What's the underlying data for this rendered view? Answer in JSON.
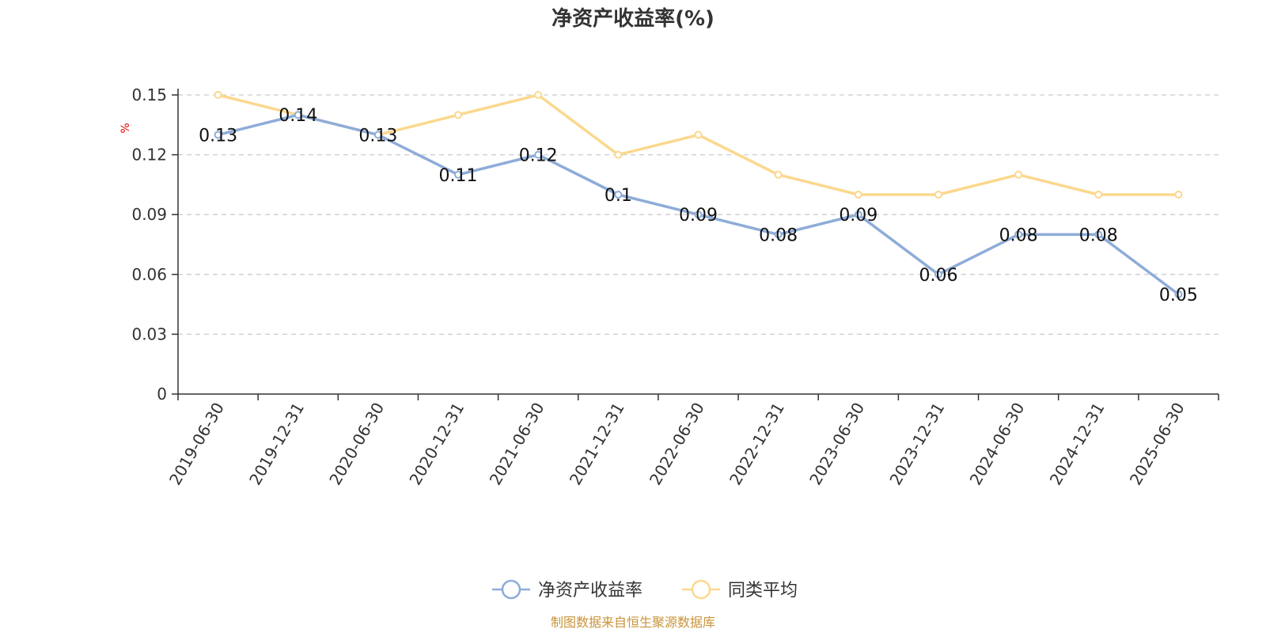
{
  "chart_data": {
    "type": "line",
    "title": "净资产收益率(%)",
    "ylabel": "%",
    "ylim": [
      0,
      0.15
    ],
    "yticks": [
      "0",
      "0.03",
      "0.06",
      "0.09",
      "0.12",
      "0.15"
    ],
    "categories": [
      "2019-06-30",
      "2019-12-31",
      "2020-06-30",
      "2020-12-31",
      "2021-06-30",
      "2021-12-31",
      "2022-06-30",
      "2022-12-31",
      "2023-06-30",
      "2023-12-31",
      "2024-06-30",
      "2024-12-31",
      "2025-06-30"
    ],
    "series": [
      {
        "name": "净资产收益率",
        "color": "#8eacd8",
        "values": [
          0.13,
          0.14,
          0.13,
          0.11,
          0.12,
          0.1,
          0.09,
          0.08,
          0.09,
          0.06,
          0.08,
          0.08,
          0.05
        ],
        "labels": [
          "0.13",
          "0.14",
          "0.13",
          "0.11",
          "0.12",
          "0.1",
          "0.09",
          "0.08",
          "0.09",
          "0.06",
          "0.08",
          "0.08",
          "0.05"
        ]
      },
      {
        "name": "同类平均",
        "color": "#fbd88e",
        "values": [
          0.15,
          0.14,
          0.13,
          0.14,
          0.15,
          0.12,
          0.13,
          0.11,
          0.1,
          0.1,
          0.11,
          0.1,
          0.1
        ]
      }
    ],
    "grid": true,
    "legend_position": "bottom"
  },
  "source_note": "制图数据来自恒生聚源数据库"
}
